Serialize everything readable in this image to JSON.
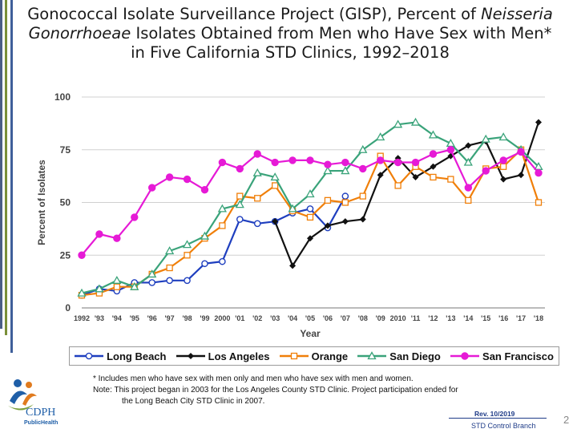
{
  "title_lines": [
    [
      "Gonococcal Isolate Surveillance Project (GISP), Percent of ",
      "Neisseria"
    ],
    [
      "Gonorrhoeae",
      " Isolates Obtained from Men who Have Sex with Men*"
    ],
    [
      "in Five California STD Clinics, 1992–2018",
      ""
    ]
  ],
  "chart_data": {
    "type": "line",
    "xlabel": "Year",
    "ylabel": "Percent of Isolates",
    "ylim": [
      0,
      100
    ],
    "yticks": [
      0,
      25,
      50,
      75,
      100
    ],
    "grid": "horizontal",
    "legend_position": "bottom",
    "x": [
      1992,
      1993,
      1994,
      1995,
      1996,
      1997,
      1998,
      1999,
      2000,
      2001,
      2002,
      2003,
      2004,
      2005,
      2006,
      2007,
      2008,
      2009,
      2010,
      2011,
      2012,
      2013,
      2014,
      2015,
      2016,
      2017,
      2018
    ],
    "x_tick_labels": [
      "1992",
      "'93",
      "'94",
      "'95",
      "'96",
      "'97",
      "'98",
      "'99",
      "2000",
      "'01",
      "'02",
      "'03",
      "'04",
      "'05",
      "'06",
      "'07",
      "'08",
      "'09",
      "2010",
      "'11",
      "'12",
      "'13",
      "'14",
      "'15",
      "'16",
      "'17",
      "'18"
    ],
    "series": [
      {
        "name": "Long Beach",
        "color": "#1f3fbf",
        "marker": "circle",
        "values": [
          6,
          9,
          8,
          12,
          12,
          13,
          13,
          21,
          22,
          42,
          40,
          41,
          45,
          47,
          38,
          53,
          null,
          null,
          null,
          null,
          null,
          null,
          null,
          null,
          null,
          null,
          null
        ]
      },
      {
        "name": "Los Angeles",
        "color": "#111111",
        "marker": "diamond",
        "values": [
          null,
          null,
          null,
          null,
          null,
          null,
          null,
          null,
          null,
          null,
          null,
          41,
          20,
          33,
          39,
          41,
          42,
          63,
          71,
          62,
          67,
          72,
          77,
          79,
          61,
          63,
          88
        ]
      },
      {
        "name": "Orange",
        "color": "#f07f09",
        "marker": "square",
        "values": [
          6,
          7,
          10,
          10,
          16,
          19,
          25,
          33,
          39,
          53,
          52,
          58,
          46,
          43,
          51,
          50,
          53,
          72,
          58,
          67,
          62,
          61,
          51,
          66,
          67,
          75,
          50
        ]
      },
      {
        "name": "San Diego",
        "color": "#3aa37a",
        "marker": "triangle",
        "values": [
          7,
          9,
          13,
          10,
          16,
          27,
          30,
          34,
          47,
          49,
          64,
          62,
          47,
          54,
          65,
          65,
          75,
          81,
          87,
          88,
          82,
          78,
          69,
          80,
          81,
          75,
          67
        ]
      },
      {
        "name": "San Francisco",
        "color": "#e61ad6",
        "marker": "circle-filled",
        "values": [
          25,
          35,
          33,
          43,
          57,
          62,
          61,
          56,
          69,
          66,
          73,
          69,
          70,
          70,
          68,
          69,
          66,
          70,
          69,
          69,
          73,
          75,
          57,
          65,
          70,
          74,
          64
        ]
      }
    ]
  },
  "notes": {
    "line1": "* Includes men who have sex with men only and men who have sex with men and women.",
    "line2": "Note:  This project began in 2003 for the Los Angeles County STD Clinic.  Project participation ended for",
    "line3": "the Long Beach City STD Clinic in 2007."
  },
  "footer": {
    "revision": "Rev. 10/2019",
    "branch": "STD Control Branch",
    "page_number": "2"
  },
  "logo": {
    "text_main": "CDPH",
    "text_sub": "PublicHealth"
  },
  "colors": {
    "left_bar_1": "#4b5e86",
    "left_bar_2": "#7a8f38",
    "left_bar_3": "#3f5f9a",
    "tick_text": "#444444"
  }
}
